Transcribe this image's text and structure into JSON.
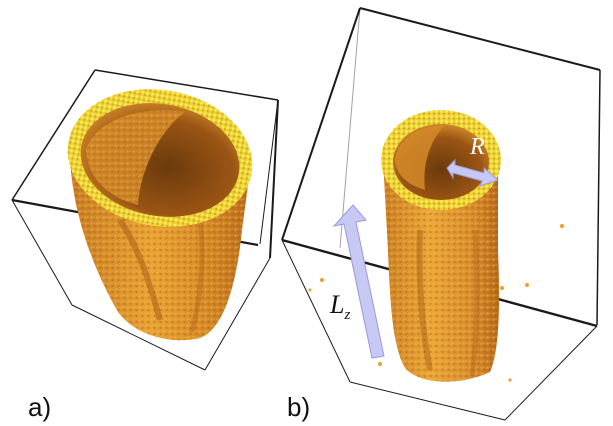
{
  "figure": {
    "panels": [
      {
        "label": "a)"
      },
      {
        "label": "b)"
      }
    ],
    "annotations": {
      "radius": "R",
      "length_main": "L",
      "length_sub": "z"
    }
  },
  "colors": {
    "background": "#ffffff",
    "box_edge": "#1a1a1a",
    "tube_outer": "#e39a2b",
    "tube_shadow": "#b8691a",
    "tube_dark": "#9a5514",
    "tube_inner": "#6b3a0c",
    "rim_highlight": "#f0e030",
    "arrow_fill": "#c8c8f4",
    "arrow_stroke": "#9a9ad8",
    "stray_particles": "#e6a32a"
  }
}
